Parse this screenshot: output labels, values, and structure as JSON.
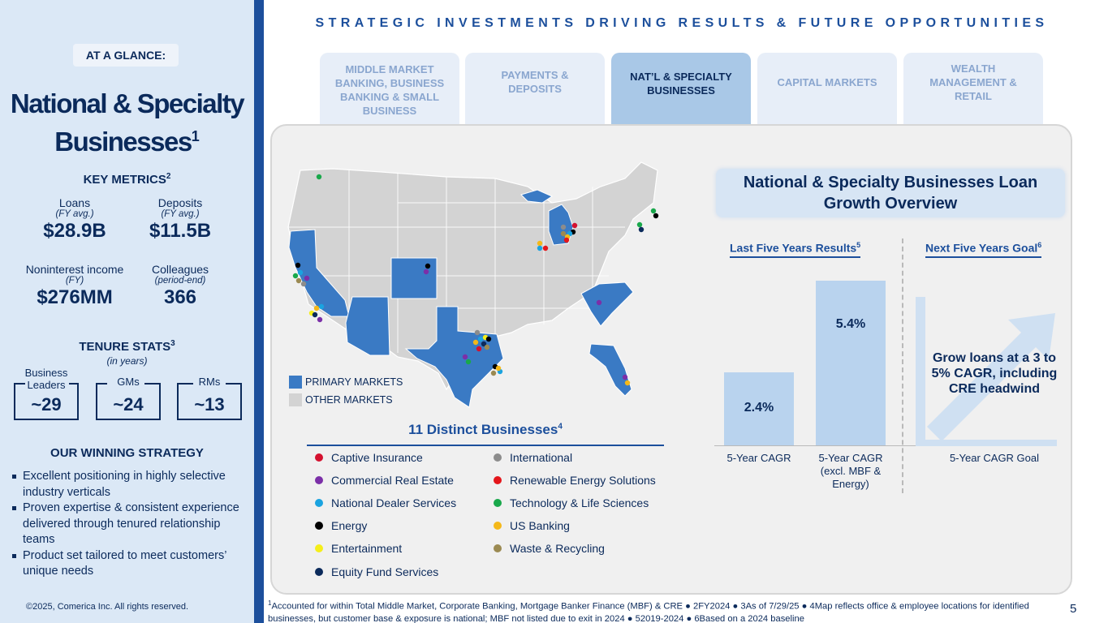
{
  "left": {
    "badge": "AT A GLANCE:",
    "title_line1": "National & Specialty",
    "title_line2": "Businesses",
    "title_sup": "1",
    "key_metrics_title": "KEY METRICS",
    "key_metrics_sup": "2",
    "metrics": [
      {
        "label": "Loans",
        "sub": "(FY avg.)",
        "value": "$28.9B"
      },
      {
        "label": "Deposits",
        "sub": "(FY avg.)",
        "value": "$11.5B"
      },
      {
        "label": "Noninterest income",
        "sub": "(FY)",
        "value": "$276MM"
      },
      {
        "label": "Colleagues",
        "sub": "(period-end)",
        "value": "366"
      }
    ],
    "tenure_title": "TENURE STATS",
    "tenure_sup": "3",
    "tenure_sub": "(in years)",
    "tenure": [
      {
        "label": "Business Leaders",
        "value": "~29"
      },
      {
        "label": "GMs",
        "value": "~24"
      },
      {
        "label": "RMs",
        "value": "~13"
      }
    ],
    "strategy_title": "OUR WINNING STRATEGY",
    "strategy": [
      "Excellent positioning in highly selective industry verticals",
      "Proven expertise & consistent experience delivered through tenured relationship teams",
      "Product set tailored to meet customers’ unique needs"
    ],
    "copyright": "©2025, Comerica Inc. All rights reserved."
  },
  "header": {
    "banner": "STRATEGIC INVESTMENTS DRIVING RESULTS & FUTURE OPPORTUNITIES",
    "tabs": [
      {
        "label": "MIDDLE MARKET BANKING, BUSINESS BANKING & SMALL BUSINESS",
        "active": false
      },
      {
        "label": "PAYMENTS & DEPOSITS",
        "active": false
      },
      {
        "label": "NAT’L & SPECIALTY BUSINESSES",
        "active": true
      },
      {
        "label": "CAPITAL MARKETS",
        "active": false
      },
      {
        "label": "WEALTH MANAGEMENT & RETAIL",
        "active": false
      }
    ]
  },
  "map": {
    "primary_label": "PRIMARY MARKETS",
    "other_label": "OTHER MARKETS",
    "primary_color": "#3a7ac4",
    "other_color": "#d3d3d3"
  },
  "businesses": {
    "title": "11 Distinct Businesses",
    "title_sup": "4",
    "items": [
      {
        "label": "Captive Insurance",
        "color": "#d4112f"
      },
      {
        "label": "Commercial Real Estate",
        "color": "#7b2fa8"
      },
      {
        "label": "National Dealer Services",
        "color": "#1aa3e0"
      },
      {
        "label": "Energy",
        "color": "#000000"
      },
      {
        "label": "Entertainment",
        "color": "#f5ee1a"
      },
      {
        "label": "Equity Fund Services",
        "color": "#0b2a5b"
      },
      {
        "label": "International",
        "color": "#8c8c8c"
      },
      {
        "label": "Renewable Energy Solutions",
        "color": "#e4161b"
      },
      {
        "label": "Technology & Life Sciences",
        "color": "#19a84b"
      },
      {
        "label": "US Banking",
        "color": "#f4b819"
      },
      {
        "label": "Waste & Recycling",
        "color": "#9b8a52"
      }
    ]
  },
  "overview": {
    "title": "National & Specialty Businesses Loan Growth Overview",
    "last_header": "Last Five Years Results",
    "last_sup": "5",
    "next_header": "Next Five Years Goal",
    "next_sup": "6",
    "goal_text": "Grow loans at a 3 to 5% CAGR, including CRE headwind",
    "goal_label": "5-Year CAGR Goal"
  },
  "chart_data": {
    "type": "bar",
    "categories": [
      "5-Year CAGR",
      "5-Year CAGR (excl. MBF & Energy)"
    ],
    "values": [
      2.4,
      5.4
    ],
    "value_labels": [
      "2.4%",
      "5.4%"
    ],
    "ylim": [
      0,
      5.6
    ]
  },
  "footnote": "Accounted for within Total Middle Market, Corporate Banking, Mortgage Banker Finance (MBF) & CRE ● 2FY2024 ● 3As of 7/29/25 ● 4Map reflects office & employee locations for identified businesses, but customer base & exposure is national; MBF not listed due to exit in 2024 ● 52019-2024 ● 6Based on a 2024 baseline",
  "page_number": "5"
}
